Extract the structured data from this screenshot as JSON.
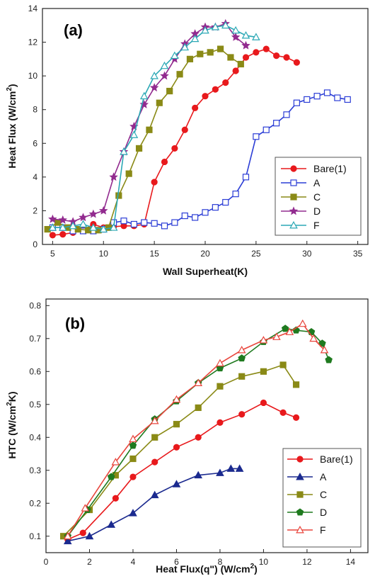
{
  "chart_data": [
    {
      "type": "line",
      "panel_label": "(a)",
      "xlabel": "Wall Superheat(K)",
      "ylabel": "Heat Flux (W/cm2)",
      "xlim": [
        4,
        36
      ],
      "ylim": [
        0,
        14
      ],
      "xticks": [
        5,
        10,
        15,
        20,
        25,
        30,
        35
      ],
      "yticks": [
        0,
        2,
        4,
        6,
        8,
        10,
        12,
        14
      ],
      "legend_position": "bottom-right",
      "series": [
        {
          "name": "Bare(1)",
          "color": "#e8191c",
          "marker": "circle-filled",
          "x": [
            5.0,
            6.0,
            7.0,
            8.0,
            9.0,
            10.0,
            11.0,
            12.0,
            13.0,
            14.0,
            15.0,
            16.0,
            17.0,
            18.0,
            19.0,
            20.0,
            21.0,
            22.0,
            23.0,
            24.0,
            25.0,
            26.0,
            27.0,
            28.0,
            29.0
          ],
          "y": [
            0.55,
            0.6,
            0.7,
            0.85,
            1.2,
            1.0,
            1.05,
            1.1,
            1.1,
            1.2,
            3.7,
            4.9,
            5.7,
            6.8,
            8.1,
            8.8,
            9.2,
            9.6,
            10.3,
            11.1,
            11.4,
            11.6,
            11.2,
            11.1,
            10.8
          ]
        },
        {
          "name": "A",
          "color": "#2c3ed6",
          "marker": "square-open",
          "x": [
            5.0,
            6.0,
            7.0,
            8.0,
            9.0,
            10.0,
            11.0,
            12.0,
            13.0,
            14.0,
            15.0,
            16.0,
            17.0,
            18.0,
            19.0,
            20.0,
            21.0,
            22.0,
            23.0,
            24.0,
            25.0,
            26.0,
            27.0,
            28.0,
            29.0,
            30.0,
            31.0,
            32.0,
            33.0,
            34.0
          ],
          "y": [
            1.0,
            1.0,
            0.8,
            0.8,
            0.8,
            0.9,
            1.3,
            1.4,
            1.2,
            1.3,
            1.25,
            1.1,
            1.3,
            1.7,
            1.6,
            1.9,
            2.2,
            2.5,
            3.0,
            4.0,
            6.4,
            6.8,
            7.2,
            7.7,
            8.4,
            8.6,
            8.8,
            9.0,
            8.7,
            8.6
          ]
        },
        {
          "name": "C",
          "color": "#8a8a16",
          "marker": "square-filled",
          "x": [
            4.5,
            5.5,
            6.5,
            7.5,
            8.5,
            9.5,
            10.5,
            11.5,
            12.5,
            13.5,
            14.5,
            15.5,
            16.5,
            17.5,
            18.5,
            19.5,
            20.5,
            21.5,
            22.5,
            23.5
          ],
          "y": [
            0.9,
            1.3,
            1.0,
            0.9,
            0.85,
            0.85,
            1.0,
            2.9,
            4.2,
            5.7,
            6.8,
            8.4,
            9.1,
            10.1,
            11.0,
            11.3,
            11.4,
            11.6,
            11.1,
            10.7
          ]
        },
        {
          "name": "D",
          "color": "#922b8f",
          "marker": "star-filled",
          "x": [
            5.0,
            6.0,
            7.0,
            8.0,
            9.0,
            10.0,
            11.0,
            12.0,
            13.0,
            14.0,
            15.0,
            16.0,
            17.0,
            18.0,
            19.0,
            20.0,
            21.0,
            22.0,
            23.0,
            24.0
          ],
          "y": [
            1.5,
            1.45,
            1.35,
            1.6,
            1.8,
            2.0,
            4.0,
            5.5,
            7.0,
            8.3,
            9.3,
            10.0,
            11.0,
            11.9,
            12.5,
            12.9,
            12.9,
            13.1,
            12.3,
            11.8
          ]
        },
        {
          "name": "F",
          "color": "#2ba8b5",
          "marker": "triangle-open",
          "x": [
            5.0,
            6.0,
            7.0,
            8.0,
            9.0,
            10.0,
            11.0,
            12.0,
            13.0,
            14.0,
            15.0,
            16.0,
            17.0,
            18.0,
            19.0,
            20.0,
            21.0,
            22.0,
            23.0,
            24.0,
            25.0
          ],
          "y": [
            1.0,
            1.0,
            1.1,
            1.2,
            1.0,
            0.9,
            1.0,
            5.5,
            6.5,
            8.8,
            10.0,
            10.6,
            11.2,
            11.7,
            12.2,
            12.7,
            12.9,
            13.0,
            12.7,
            12.4,
            12.3
          ]
        }
      ]
    },
    {
      "type": "line",
      "panel_label": "(b)",
      "xlabel": "Heat Flux(q\") (W/cm2)",
      "ylabel": "HTC (W/cm2K)",
      "xlim": [
        0,
        14.8
      ],
      "ylim": [
        0.05,
        0.82
      ],
      "xticks": [
        0,
        2,
        4,
        6,
        8,
        10,
        12,
        14
      ],
      "yticks": [
        0.1,
        0.2,
        0.3,
        0.4,
        0.5,
        0.6,
        0.7,
        0.8
      ],
      "legend_position": "bottom-right",
      "series": [
        {
          "name": "Bare(1)",
          "color": "#e8191c",
          "marker": "circle-filled",
          "x": [
            1.0,
            1.7,
            3.2,
            4.0,
            5.0,
            6.0,
            7.0,
            8.0,
            9.0,
            10.0,
            10.9,
            11.5
          ],
          "y": [
            0.09,
            0.11,
            0.215,
            0.28,
            0.325,
            0.37,
            0.4,
            0.445,
            0.47,
            0.505,
            0.475,
            0.46
          ]
        },
        {
          "name": "A",
          "color": "#1b2a8f",
          "marker": "triangle-filled",
          "x": [
            1.0,
            2.0,
            3.0,
            4.0,
            5.0,
            6.0,
            7.0,
            8.0,
            8.5,
            8.9
          ],
          "y": [
            0.085,
            0.1,
            0.135,
            0.17,
            0.225,
            0.258,
            0.285,
            0.292,
            0.305,
            0.305
          ]
        },
        {
          "name": "C",
          "color": "#8a8a16",
          "marker": "square-filled",
          "x": [
            0.8,
            2.0,
            3.2,
            4.0,
            5.0,
            6.0,
            7.0,
            8.0,
            9.0,
            10.0,
            10.9,
            11.5
          ],
          "y": [
            0.1,
            0.18,
            0.285,
            0.335,
            0.4,
            0.44,
            0.49,
            0.555,
            0.585,
            0.6,
            0.62,
            0.56
          ]
        },
        {
          "name": "D",
          "color": "#1f7a1f",
          "marker": "pentagon-filled",
          "x": [
            1.0,
            1.9,
            3.0,
            4.0,
            5.0,
            6.0,
            7.0,
            8.0,
            9.0,
            10.0,
            11.0,
            11.5,
            12.2,
            12.7,
            13.0
          ],
          "y": [
            0.1,
            0.18,
            0.28,
            0.375,
            0.455,
            0.51,
            0.565,
            0.61,
            0.64,
            0.69,
            0.73,
            0.725,
            0.72,
            0.685,
            0.635
          ]
        },
        {
          "name": "F",
          "color": "#e8453c",
          "marker": "triangle-open",
          "x": [
            1.0,
            1.8,
            3.2,
            4.0,
            5.0,
            6.0,
            7.0,
            8.0,
            9.0,
            10.0,
            10.6,
            11.2,
            11.8,
            12.3,
            12.8
          ],
          "y": [
            0.1,
            0.185,
            0.325,
            0.395,
            0.45,
            0.515,
            0.565,
            0.625,
            0.665,
            0.695,
            0.705,
            0.72,
            0.745,
            0.7,
            0.665
          ]
        }
      ]
    }
  ]
}
